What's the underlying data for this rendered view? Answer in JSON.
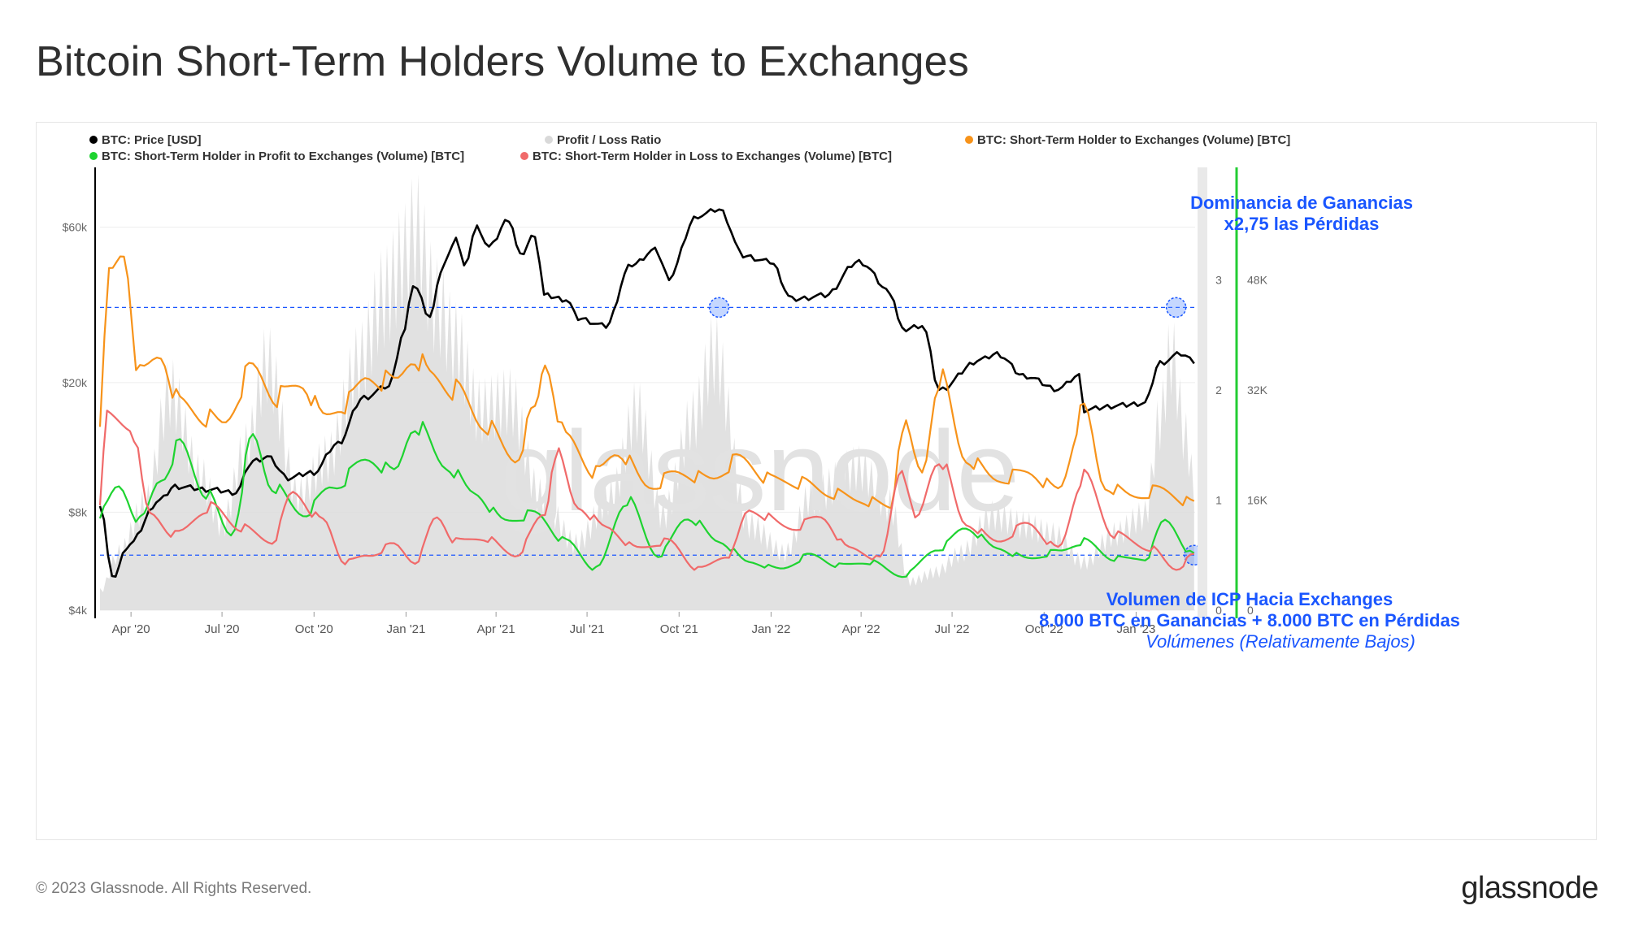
{
  "page": {
    "title": "Bitcoin Short-Term Holders Volume to Exchanges",
    "copyright": "© 2023 Glassnode. All Rights Reserved.",
    "logo": "glassnode",
    "watermark": "glassnode"
  },
  "chart_data": {
    "type": "line",
    "legend": [
      {
        "label": "BTC: Price [USD]",
        "color": "#000000"
      },
      {
        "label": "Profit / Loss Ratio",
        "color": "#d9d9d9"
      },
      {
        "label": "BTC: Short-Term Holder to Exchanges (Volume) [BTC]",
        "color": "#f7931a"
      },
      {
        "label": "BTC: Short-Term Holder in Profit to Exchanges (Volume) [BTC]",
        "color": "#1ed330"
      },
      {
        "label": "BTC: Short-Term Holder in Loss to Exchanges (Volume) [BTC]",
        "color": "#f06a6a"
      }
    ],
    "x_ticks": [
      "Apr '20",
      "Jul '20",
      "Oct '20",
      "Jan '21",
      "Apr '21",
      "Jul '21",
      "Oct '21",
      "Jan '22",
      "Apr '22",
      "Jul '22",
      "Oct '22",
      "Jan '23"
    ],
    "y_left": {
      "scale": "log",
      "ticks": [
        "$60k",
        "$20k",
        "$8k",
        "$4k"
      ],
      "tick_values": [
        60000,
        20000,
        8000,
        4000
      ],
      "range": [
        4000,
        90000
      ]
    },
    "y_ratio": {
      "ticks": [
        "3",
        "2",
        "1",
        "0"
      ],
      "tick_values": [
        3,
        2,
        1,
        0
      ],
      "range": [
        0,
        4
      ]
    },
    "y_volume": {
      "ticks": [
        "48K",
        "32K",
        "16K",
        "0"
      ],
      "tick_values": [
        48000,
        32000,
        16000,
        0
      ],
      "range": [
        0,
        64000
      ]
    },
    "x_start": "2020-03-01",
    "x_end": "2023-03-01",
    "series": [
      {
        "name": "BTC: Price [USD]",
        "axis": "price",
        "color": "#000000",
        "points": [
          [
            "2020-03-01",
            8500
          ],
          [
            "2020-03-13",
            5000
          ],
          [
            "2020-03-31",
            6400
          ],
          [
            "2020-04-30",
            8700
          ],
          [
            "2020-05-15",
            9600
          ],
          [
            "2020-06-15",
            9400
          ],
          [
            "2020-07-15",
            9200
          ],
          [
            "2020-08-01",
            11500
          ],
          [
            "2020-08-15",
            11800
          ],
          [
            "2020-09-05",
            10200
          ],
          [
            "2020-10-01",
            10600
          ],
          [
            "2020-10-25",
            13000
          ],
          [
            "2020-11-20",
            18000
          ],
          [
            "2020-12-15",
            19500
          ],
          [
            "2020-12-31",
            29000
          ],
          [
            "2021-01-08",
            40000
          ],
          [
            "2021-01-25",
            32000
          ],
          [
            "2021-02-08",
            46000
          ],
          [
            "2021-02-20",
            56000
          ],
          [
            "2021-02-28",
            45000
          ],
          [
            "2021-03-13",
            60000
          ],
          [
            "2021-03-25",
            52000
          ],
          [
            "2021-04-14",
            63500
          ],
          [
            "2021-04-25",
            49000
          ],
          [
            "2021-05-10",
            57000
          ],
          [
            "2021-05-19",
            37000
          ],
          [
            "2021-06-10",
            36000
          ],
          [
            "2021-06-22",
            31500
          ],
          [
            "2021-07-20",
            29800
          ],
          [
            "2021-08-15",
            46000
          ],
          [
            "2021-09-07",
            51000
          ],
          [
            "2021-09-21",
            42000
          ],
          [
            "2021-10-20",
            65000
          ],
          [
            "2021-11-10",
            68000
          ],
          [
            "2021-12-04",
            49000
          ],
          [
            "2021-12-31",
            47000
          ],
          [
            "2022-01-22",
            36000
          ],
          [
            "2022-02-24",
            37000
          ],
          [
            "2022-03-30",
            47000
          ],
          [
            "2022-04-30",
            38000
          ],
          [
            "2022-05-12",
            29000
          ],
          [
            "2022-06-01",
            30000
          ],
          [
            "2022-06-18",
            19000
          ],
          [
            "2022-07-30",
            23500
          ],
          [
            "2022-08-15",
            24500
          ],
          [
            "2022-09-10",
            21000
          ],
          [
            "2022-10-15",
            19100
          ],
          [
            "2022-11-05",
            21000
          ],
          [
            "2022-11-10",
            16500
          ],
          [
            "2022-12-15",
            17000
          ],
          [
            "2023-01-10",
            17300
          ],
          [
            "2023-01-25",
            23000
          ],
          [
            "2023-02-15",
            24500
          ],
          [
            "2023-02-28",
            23300
          ]
        ]
      },
      {
        "name": "BTC: Short-Term Holder to Exchanges (Volume) [BTC]",
        "axis": "volume",
        "color": "#f7931a",
        "points": [
          [
            "2020-03-01",
            28000
          ],
          [
            "2020-03-10",
            48000
          ],
          [
            "2020-03-25",
            52000
          ],
          [
            "2020-04-10",
            34000
          ],
          [
            "2020-05-01",
            37000
          ],
          [
            "2020-05-20",
            30000
          ],
          [
            "2020-06-15",
            28000
          ],
          [
            "2020-07-01",
            27000
          ],
          [
            "2020-08-01",
            35000
          ],
          [
            "2020-08-25",
            31000
          ],
          [
            "2020-09-20",
            33000
          ],
          [
            "2020-10-10",
            28000
          ],
          [
            "2020-11-01",
            30000
          ],
          [
            "2020-11-25",
            34000
          ],
          [
            "2020-12-20",
            33000
          ],
          [
            "2021-01-10",
            37000
          ],
          [
            "2021-01-25",
            34000
          ],
          [
            "2021-02-20",
            32000
          ],
          [
            "2021-03-20",
            27000
          ],
          [
            "2021-04-20",
            22000
          ],
          [
            "2021-05-10",
            29000
          ],
          [
            "2021-05-20",
            36000
          ],
          [
            "2021-06-10",
            25000
          ],
          [
            "2021-07-10",
            20000
          ],
          [
            "2021-08-01",
            23000
          ],
          [
            "2021-09-01",
            18000
          ],
          [
            "2021-10-01",
            20000
          ],
          [
            "2021-11-01",
            19000
          ],
          [
            "2021-12-01",
            22000
          ],
          [
            "2022-01-01",
            19000
          ],
          [
            "2022-02-01",
            18500
          ],
          [
            "2022-03-01",
            17000
          ],
          [
            "2022-04-01",
            16000
          ],
          [
            "2022-05-01",
            15000
          ],
          [
            "2022-05-12",
            27000
          ],
          [
            "2022-06-01",
            20000
          ],
          [
            "2022-06-18",
            34000
          ],
          [
            "2022-07-15",
            22000
          ],
          [
            "2022-08-15",
            19000
          ],
          [
            "2022-09-15",
            20000
          ],
          [
            "2022-10-15",
            17500
          ],
          [
            "2022-11-10",
            29000
          ],
          [
            "2022-12-01",
            18000
          ],
          [
            "2022-12-30",
            16500
          ],
          [
            "2023-01-25",
            17500
          ],
          [
            "2023-02-28",
            15500
          ]
        ]
      },
      {
        "name": "BTC: Short-Term Holder in Profit to Exchanges (Volume) [BTC]",
        "axis": "volume",
        "color": "#1ed330",
        "points": [
          [
            "2020-03-01",
            14000
          ],
          [
            "2020-03-20",
            18000
          ],
          [
            "2020-04-10",
            13000
          ],
          [
            "2020-05-01",
            19000
          ],
          [
            "2020-05-20",
            24000
          ],
          [
            "2020-06-15",
            17000
          ],
          [
            "2020-07-10",
            11000
          ],
          [
            "2020-08-01",
            25000
          ],
          [
            "2020-08-20",
            18000
          ],
          [
            "2020-09-20",
            14000
          ],
          [
            "2020-10-20",
            18000
          ],
          [
            "2020-11-25",
            22000
          ],
          [
            "2020-12-20",
            20000
          ],
          [
            "2021-01-10",
            27000
          ],
          [
            "2021-02-10",
            21000
          ],
          [
            "2021-03-10",
            17000
          ],
          [
            "2021-04-10",
            13000
          ],
          [
            "2021-05-10",
            14000
          ],
          [
            "2021-06-10",
            10000
          ],
          [
            "2021-07-10",
            6000
          ],
          [
            "2021-08-10",
            16000
          ],
          [
            "2021-09-10",
            8000
          ],
          [
            "2021-10-10",
            13500
          ],
          [
            "2021-11-10",
            10000
          ],
          [
            "2021-12-10",
            7000
          ],
          [
            "2022-01-10",
            6000
          ],
          [
            "2022-02-10",
            8000
          ],
          [
            "2022-03-10",
            6500
          ],
          [
            "2022-04-10",
            7000
          ],
          [
            "2022-05-12",
            5000
          ],
          [
            "2022-06-18",
            9000
          ],
          [
            "2022-07-15",
            12000
          ],
          [
            "2022-08-15",
            9000
          ],
          [
            "2022-09-15",
            7500
          ],
          [
            "2022-10-15",
            8500
          ],
          [
            "2022-11-10",
            10000
          ],
          [
            "2022-12-10",
            7500
          ],
          [
            "2023-01-10",
            7500
          ],
          [
            "2023-01-30",
            13000
          ],
          [
            "2023-02-28",
            8000
          ]
        ]
      },
      {
        "name": "BTC: Short-Term Holder in Loss to Exchanges (Volume) [BTC]",
        "axis": "volume",
        "color": "#f06a6a",
        "points": [
          [
            "2020-03-01",
            16000
          ],
          [
            "2020-03-08",
            28000
          ],
          [
            "2020-03-31",
            27000
          ],
          [
            "2020-04-20",
            14000
          ],
          [
            "2020-05-15",
            11000
          ],
          [
            "2020-06-20",
            15000
          ],
          [
            "2020-07-20",
            12000
          ],
          [
            "2020-08-20",
            10000
          ],
          [
            "2020-09-10",
            17000
          ],
          [
            "2020-10-10",
            13000
          ],
          [
            "2020-11-01",
            7000
          ],
          [
            "2020-11-25",
            8000
          ],
          [
            "2020-12-20",
            9500
          ],
          [
            "2021-01-10",
            7000
          ],
          [
            "2021-02-01",
            13500
          ],
          [
            "2021-02-20",
            10000
          ],
          [
            "2021-03-20",
            10500
          ],
          [
            "2021-04-20",
            8000
          ],
          [
            "2021-05-20",
            14000
          ],
          [
            "2021-05-30",
            23000
          ],
          [
            "2021-06-22",
            15000
          ],
          [
            "2021-07-20",
            12000
          ],
          [
            "2021-08-20",
            9000
          ],
          [
            "2021-09-20",
            10000
          ],
          [
            "2021-10-20",
            6000
          ],
          [
            "2021-11-20",
            8000
          ],
          [
            "2021-12-10",
            14500
          ],
          [
            "2022-01-22",
            12000
          ],
          [
            "2022-02-20",
            13500
          ],
          [
            "2022-03-20",
            9000
          ],
          [
            "2022-04-20",
            7500
          ],
          [
            "2022-05-12",
            21000
          ],
          [
            "2022-05-25",
            13000
          ],
          [
            "2022-06-18",
            22000
          ],
          [
            "2022-07-15",
            12500
          ],
          [
            "2022-08-15",
            10000
          ],
          [
            "2022-09-15",
            12500
          ],
          [
            "2022-10-15",
            9000
          ],
          [
            "2022-11-10",
            19500
          ],
          [
            "2022-12-10",
            11000
          ],
          [
            "2023-01-15",
            9000
          ],
          [
            "2023-02-10",
            6000
          ],
          [
            "2023-02-28",
            8000
          ]
        ]
      },
      {
        "name": "Profit / Loss Ratio",
        "axis": "ratio",
        "color": "#dcdcdc",
        "points": [
          [
            "2020-03-01",
            0.2
          ],
          [
            "2020-03-20",
            0.6
          ],
          [
            "2020-04-15",
            1.1
          ],
          [
            "2020-05-10",
            2.3
          ],
          [
            "2020-06-10",
            1.4
          ],
          [
            "2020-07-01",
            0.9
          ],
          [
            "2020-07-25",
            1.7
          ],
          [
            "2020-08-15",
            2.6
          ],
          [
            "2020-09-15",
            1.2
          ],
          [
            "2020-10-15",
            1.6
          ],
          [
            "2020-11-15",
            2.6
          ],
          [
            "2020-12-10",
            3.3
          ],
          [
            "2020-12-31",
            3.7
          ],
          [
            "2021-01-10",
            4.0
          ],
          [
            "2021-02-01",
            3.2
          ],
          [
            "2021-02-20",
            2.8
          ],
          [
            "2021-03-15",
            2.1
          ],
          [
            "2021-04-15",
            2.2
          ],
          [
            "2021-05-15",
            1.2
          ],
          [
            "2021-06-20",
            0.7
          ],
          [
            "2021-07-25",
            1.2
          ],
          [
            "2021-08-20",
            2.1
          ],
          [
            "2021-09-15",
            1.0
          ],
          [
            "2021-10-15",
            2.0
          ],
          [
            "2021-11-05",
            2.7
          ],
          [
            "2021-12-10",
            0.9
          ],
          [
            "2022-01-15",
            0.6
          ],
          [
            "2022-02-10",
            1.2
          ],
          [
            "2022-03-30",
            1.5
          ],
          [
            "2022-04-30",
            1.1
          ],
          [
            "2022-05-20",
            0.3
          ],
          [
            "2022-06-15",
            0.4
          ],
          [
            "2022-07-10",
            0.6
          ],
          [
            "2022-08-10",
            1.0
          ],
          [
            "2022-09-10",
            0.9
          ],
          [
            "2022-10-10",
            0.8
          ],
          [
            "2022-11-10",
            0.5
          ],
          [
            "2022-12-10",
            0.8
          ],
          [
            "2023-01-10",
            1.0
          ],
          [
            "2023-01-25",
            2.0
          ],
          [
            "2023-02-05",
            2.7
          ],
          [
            "2023-02-20",
            1.8
          ],
          [
            "2023-02-28",
            1.3
          ]
        ]
      }
    ],
    "annotations": [
      {
        "text": "Dominancia de Ganancias",
        "color": "#1a56ff",
        "bold": true
      },
      {
        "text": "x2,75 las Pérdidas",
        "color": "#1a56ff",
        "bold": true
      },
      {
        "text": "Volumen de ICP Hacia Exchanges",
        "color": "#1a56ff",
        "bold": true
      },
      {
        "text": "8.000 BTC en Ganancias + 8.000 BTC en Pérdidas",
        "color": "#1a56ff",
        "bold": true
      },
      {
        "text": "Volúmenes (Relativamente Bajos)",
        "color": "#1a56ff",
        "italic": true
      }
    ],
    "reference_lines": [
      {
        "axis": "ratio",
        "value": 2.75,
        "style": "dashed",
        "color": "#1a56ff"
      },
      {
        "axis": "volume",
        "value": 8000,
        "style": "dashed",
        "color": "#1a56ff"
      }
    ],
    "highlight_dates": [
      {
        "date": "2021-11-10",
        "value": 2.75,
        "axis": "ratio"
      },
      {
        "date": "2023-02-10",
        "value": 2.75,
        "axis": "ratio"
      },
      {
        "date": "2023-02-28",
        "value": 8000,
        "axis": "volume"
      }
    ],
    "right_axis_color": "#22cc33",
    "grid": true
  }
}
